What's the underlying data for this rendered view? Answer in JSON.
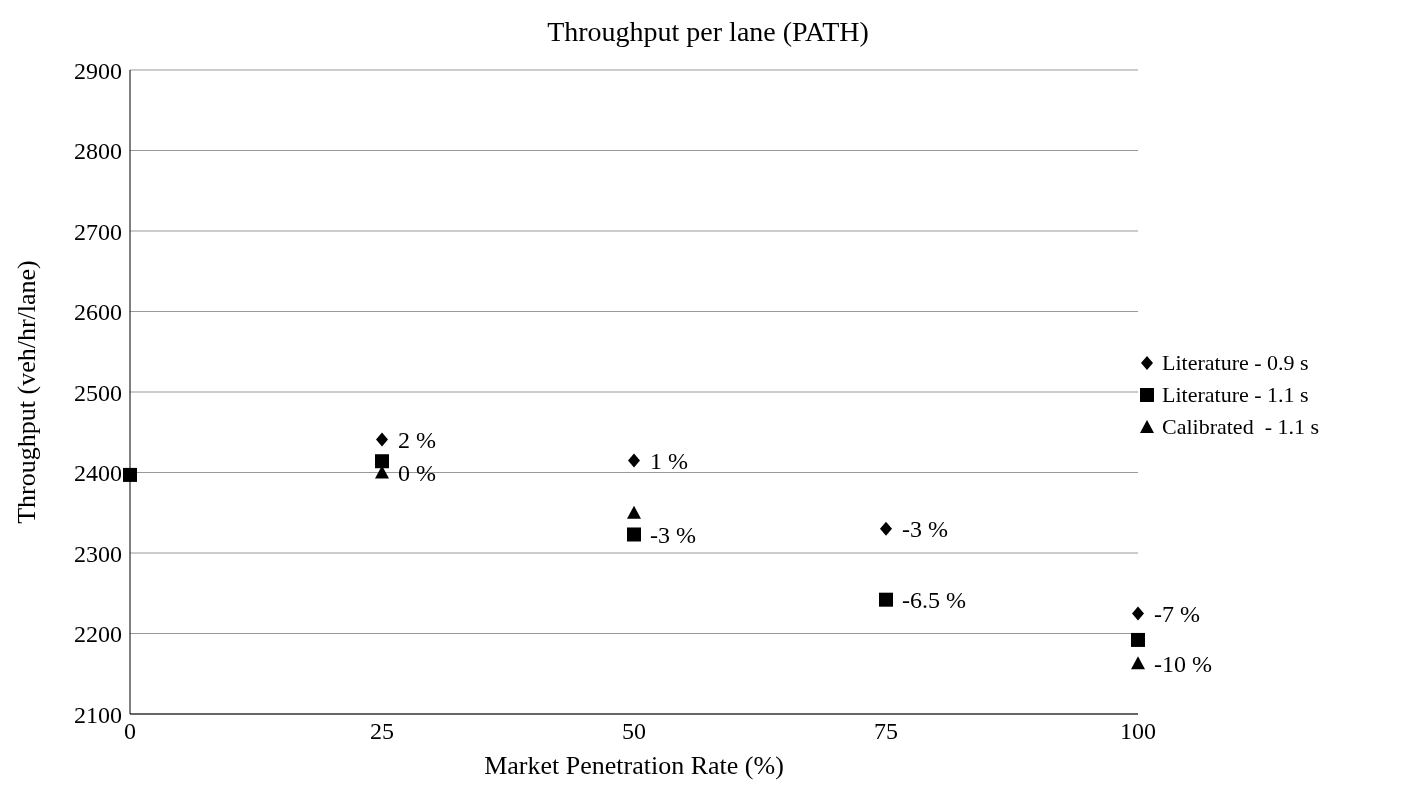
{
  "chart_data": {
    "type": "scatter",
    "title": "Throughput per lane (PATH)",
    "xlabel": "Market Penetration Rate (%)",
    "ylabel": "Throughput (veh/hr/lane)",
    "x": [
      0,
      25,
      50,
      75,
      100
    ],
    "series": [
      {
        "name": "Literature - 0.9 s",
        "color": "#000000",
        "marker": "diamond",
        "values": [
          null,
          2441,
          2415,
          2330,
          2225
        ]
      },
      {
        "name": "Literature - 1.1 s",
        "color": "#000000",
        "marker": "square",
        "values": [
          2397,
          2414,
          2323,
          2242,
          2192
        ]
      },
      {
        "name": "Calibrated  - 1.1 s",
        "color": "#000000",
        "marker": "triangle",
        "values": [
          null,
          2400,
          2350,
          null,
          2163
        ]
      }
    ],
    "xlim": [
      0,
      100
    ],
    "xticks": [
      0,
      25,
      50,
      75,
      100
    ],
    "ylim": [
      2100,
      2900
    ],
    "yticks": [
      2100,
      2200,
      2300,
      2400,
      2500,
      2600,
      2700,
      2800,
      2900
    ],
    "grid": "y",
    "legend": "right",
    "annotations": [
      {
        "text": "2 %",
        "x": 25,
        "y": 2441
      },
      {
        "text": "0 %",
        "x": 25,
        "y": 2400
      },
      {
        "text": "1 %",
        "x": 50,
        "y": 2415
      },
      {
        "text": "-3 %",
        "x": 50,
        "y": 2323
      },
      {
        "text": "-3 %",
        "x": 75,
        "y": 2330
      },
      {
        "text": "-6.5 %",
        "x": 75,
        "y": 2242
      },
      {
        "text": "-7 %",
        "x": 100,
        "y": 2225
      },
      {
        "text": "-10 %",
        "x": 100,
        "y": 2163
      }
    ]
  }
}
